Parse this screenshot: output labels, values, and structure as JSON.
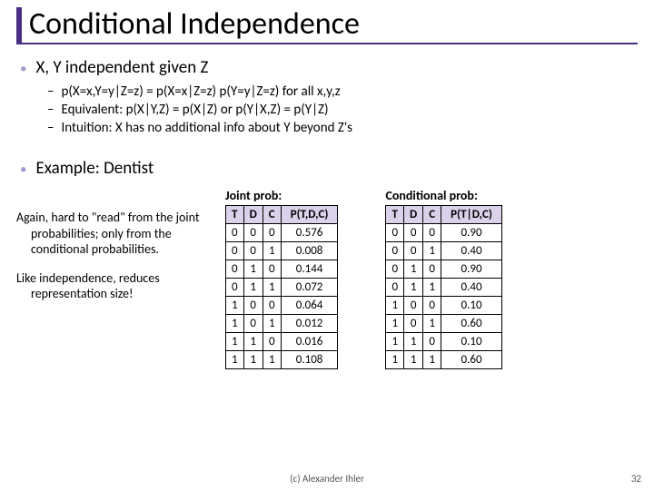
{
  "title": "Conditional Independence",
  "bullets": {
    "main1": "X, Y independent given Z",
    "sub1": "p(X=x,Y=y|Z=z) = p(X=x|Z=z) p(Y=y|Z=z)     for all x,y,z",
    "sub2": "Equivalent:  p(X|Y,Z) = p(X|Z)  or  p(Y|X,Z) = p(Y|Z)",
    "sub3": "Intuition: X has no additional info about Y beyond Z's",
    "main2": "Example: Dentist"
  },
  "left_notes": {
    "p1": "Again, hard to \"read\" from the joint probabilities; only from the conditional probabilities.",
    "p2": "Like independence, reduces representation size!"
  },
  "joint_table": {
    "caption": "Joint prob:",
    "headers": [
      "T",
      "D",
      "C",
      "P(T,D,C)"
    ],
    "rows": [
      [
        "0",
        "0",
        "0",
        "0.576"
      ],
      [
        "0",
        "0",
        "1",
        "0.008"
      ],
      [
        "0",
        "1",
        "0",
        "0.144"
      ],
      [
        "0",
        "1",
        "1",
        "0.072"
      ],
      [
        "1",
        "0",
        "0",
        "0.064"
      ],
      [
        "1",
        "0",
        "1",
        "0.012"
      ],
      [
        "1",
        "1",
        "0",
        "0.016"
      ],
      [
        "1",
        "1",
        "1",
        "0.108"
      ]
    ]
  },
  "cond_table": {
    "caption": "Conditional prob:",
    "headers": [
      "T",
      "D",
      "C",
      "P(T|D,C)"
    ],
    "rows": [
      [
        "0",
        "0",
        "0",
        "0.90"
      ],
      [
        "0",
        "0",
        "1",
        "0.40"
      ],
      [
        "0",
        "1",
        "0",
        "0.90"
      ],
      [
        "0",
        "1",
        "1",
        "0.40"
      ],
      [
        "1",
        "0",
        "0",
        "0.10"
      ],
      [
        "1",
        "0",
        "1",
        "0.60"
      ],
      [
        "1",
        "1",
        "0",
        "0.10"
      ],
      [
        "1",
        "1",
        "1",
        "0.60"
      ]
    ]
  },
  "footer": "(c) Alexander Ihler",
  "page_number": "32",
  "colors": {
    "accent": "#4a2f85",
    "bullet_dot": "#a997cf",
    "table_header_bg": "#dbd1ea"
  }
}
